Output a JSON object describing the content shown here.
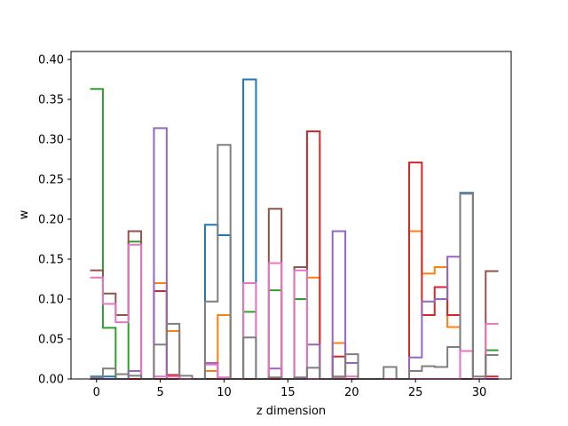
{
  "chart_data": {
    "type": "step",
    "title": "",
    "xlabel": "z dimension",
    "ylabel": "w",
    "xlim": [
      -2.0,
      32.5
    ],
    "ylim": [
      0,
      0.41
    ],
    "xticks": [
      0,
      5,
      10,
      15,
      20,
      25,
      30
    ],
    "yticks": [
      0.0,
      0.05,
      0.1,
      0.15,
      0.2,
      0.25,
      0.3,
      0.35,
      0.4
    ],
    "ytick_labels": [
      "0.00",
      "0.05",
      "0.10",
      "0.15",
      "0.20",
      "0.25",
      "0.30",
      "0.35",
      "0.40"
    ],
    "grid": false,
    "legend": "none",
    "x": [
      0,
      1,
      2,
      3,
      4,
      5,
      6,
      7,
      8,
      9,
      10,
      11,
      12,
      13,
      14,
      15,
      16,
      17,
      18,
      19,
      20,
      21,
      22,
      23,
      24,
      25,
      26,
      27,
      28,
      29,
      30,
      31
    ],
    "series": [
      {
        "color": "#1f77b4",
        "values": [
          0.003,
          0.003,
          0,
          0,
          0,
          0,
          0,
          0,
          0,
          0.193,
          0.18,
          0,
          0.375,
          0,
          0,
          0,
          0,
          0,
          0,
          0,
          0,
          0,
          0,
          0,
          0,
          0,
          0,
          0,
          0,
          0.233,
          0,
          0
        ]
      },
      {
        "color": "#ff7f0e",
        "values": [
          0,
          0,
          0,
          0,
          0,
          0.12,
          0.06,
          0,
          0,
          0.01,
          0.08,
          0,
          0,
          0,
          0,
          0,
          0,
          0.127,
          0,
          0.045,
          0,
          0,
          0,
          0,
          0,
          0.185,
          0.132,
          0.14,
          0.065,
          0.035,
          0,
          0
        ]
      },
      {
        "color": "#2ca02c",
        "values": [
          0.363,
          0.064,
          0,
          0.172,
          0,
          0,
          0,
          0,
          0,
          0,
          0,
          0,
          0.084,
          0,
          0.111,
          0,
          0.1,
          0,
          0,
          0,
          0,
          0,
          0,
          0,
          0,
          0,
          0,
          0,
          0,
          0,
          0,
          0.036
        ]
      },
      {
        "color": "#d62728",
        "values": [
          0,
          0,
          0,
          0,
          0,
          0.11,
          0.005,
          0,
          0,
          0,
          0,
          0,
          0,
          0,
          0,
          0,
          0,
          0.31,
          0,
          0.028,
          0,
          0,
          0,
          0,
          0,
          0.271,
          0.08,
          0.115,
          0.08,
          0,
          0,
          0.003
        ]
      },
      {
        "color": "#9467bd",
        "values": [
          0,
          0,
          0,
          0.01,
          0,
          0.314,
          0,
          0,
          0,
          0.02,
          0,
          0,
          0,
          0,
          0.013,
          0,
          0,
          0.043,
          0,
          0.185,
          0.02,
          0,
          0,
          0,
          0,
          0.027,
          0.097,
          0.1,
          0.153,
          0,
          0,
          0
        ]
      },
      {
        "color": "#8c564b",
        "values": [
          0.136,
          0.107,
          0.08,
          0.185,
          0,
          0,
          0,
          0,
          0,
          0,
          0,
          0,
          0,
          0,
          0.213,
          0,
          0.14,
          0,
          0,
          0,
          0,
          0,
          0,
          0,
          0,
          0,
          0,
          0,
          0,
          0,
          0,
          0.135
        ]
      },
      {
        "color": "#e377c2",
        "values": [
          0.127,
          0.094,
          0.071,
          0.168,
          0,
          0.003,
          0.003,
          0,
          0,
          0.018,
          0.002,
          0,
          0.12,
          0,
          0.145,
          0,
          0.136,
          0,
          0,
          0.002,
          0.003,
          0,
          0,
          0,
          0,
          0,
          0,
          0,
          0,
          0.035,
          0,
          0.069
        ]
      },
      {
        "color": "#7f7f7f",
        "values": [
          0.002,
          0.013,
          0.006,
          0.004,
          0,
          0.043,
          0.069,
          0.004,
          0,
          0.097,
          0.293,
          0,
          0.052,
          0,
          0.002,
          0,
          0.002,
          0.014,
          0,
          0.003,
          0.031,
          0,
          0,
          0.015,
          0,
          0.01,
          0.016,
          0.015,
          0.04,
          0.232,
          0.003,
          0.03
        ]
      }
    ]
  }
}
